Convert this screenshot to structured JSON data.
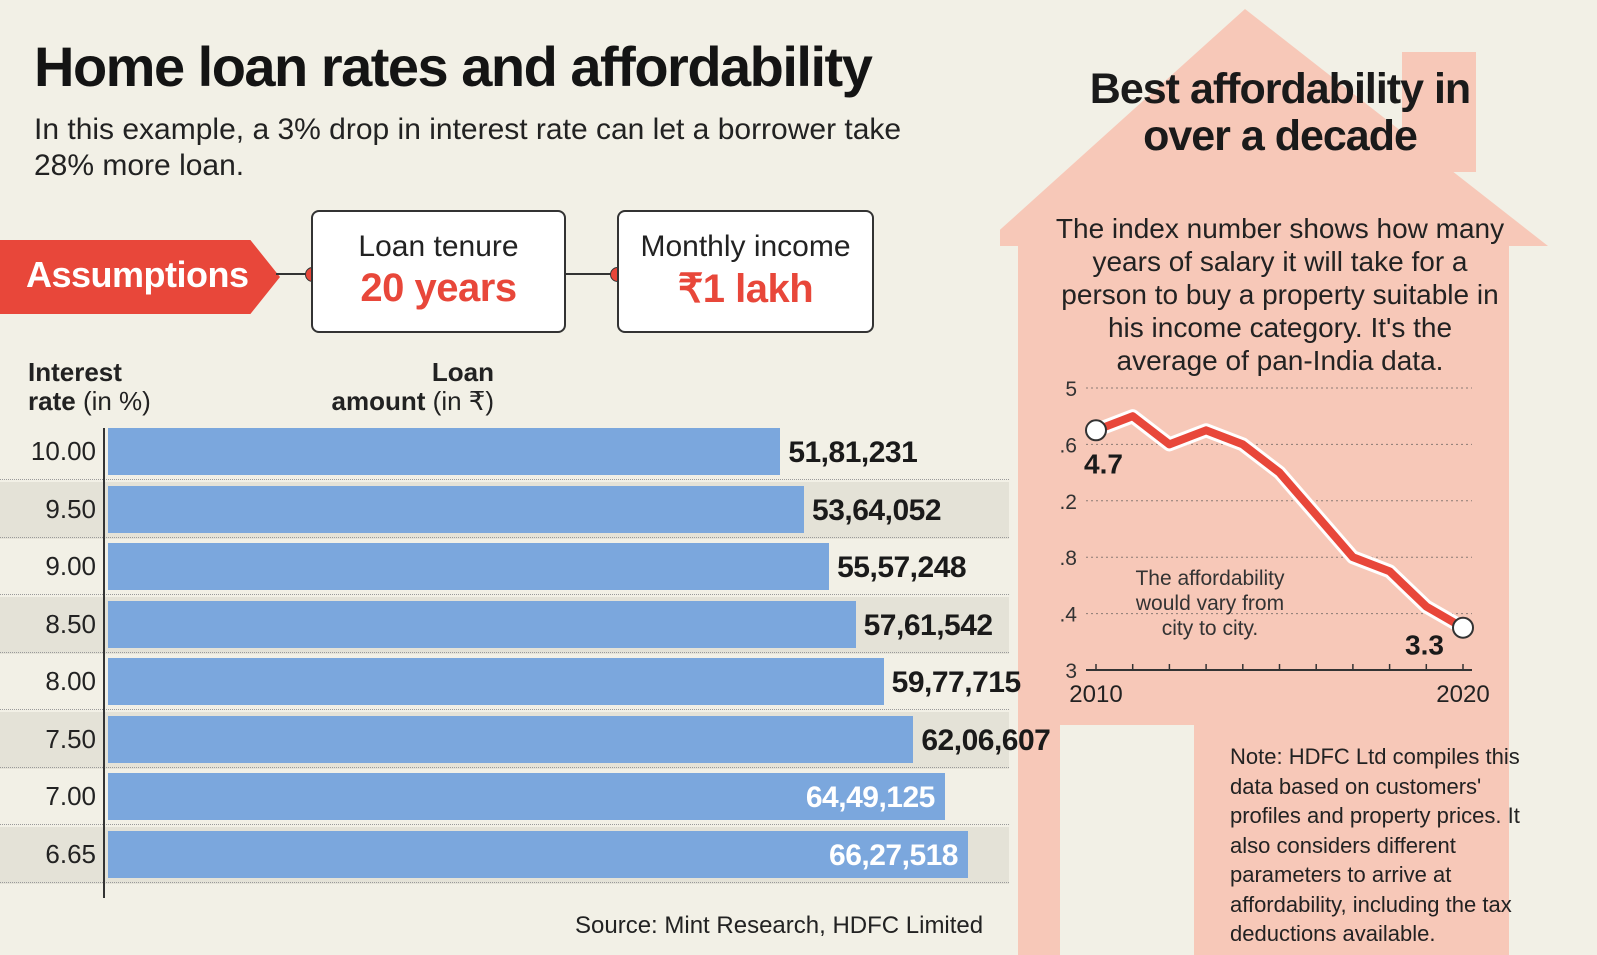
{
  "title": "Home loan rates and affordability",
  "subtitle": "In this example, a 3% drop in interest rate can let a borrower take 28% more loan.",
  "assumptions": {
    "label": "Assumptions",
    "cards": [
      {
        "label": "Loan tenure",
        "value": "20 years"
      },
      {
        "label": "Monthly income",
        "value": "₹1 lakh"
      }
    ]
  },
  "colors": {
    "accent": "#e8473a",
    "bar": "#7ba7dd",
    "panel": "#f7c8b8",
    "background": "#f2f0e6"
  },
  "chart_data": [
    {
      "type": "bar",
      "orientation": "horizontal",
      "header_left_bold": "Interest",
      "header_left_rest_bold": "rate",
      "header_left_unit": "(in %)",
      "header_right_bold": "Loan",
      "header_right_rest_bold": "amount",
      "header_right_unit": "(in ₹)",
      "categories": [
        "10.00",
        "9.50",
        "9.00",
        "8.50",
        "8.00",
        "7.50",
        "7.00",
        "6.65"
      ],
      "values": [
        5181231,
        5364052,
        5557248,
        5761542,
        5977715,
        6206607,
        6449125,
        6627518
      ],
      "labels": [
        "51,81,231",
        "53,64,052",
        "55,57,248",
        "57,61,542",
        "59,77,715",
        "62,06,607",
        "64,49,125",
        "66,27,518"
      ],
      "label_inside_from_index": 6,
      "source": "Source: Mint Research, HDFC Limited"
    },
    {
      "type": "line",
      "title": "Best affordability in over a decade",
      "description": "The index number shows how many years of salary it will take for a person to buy a property suitable in his income category. It's the average of pan-India data.",
      "x": [
        2010,
        2011,
        2012,
        2013,
        2014,
        2015,
        2016,
        2017,
        2018,
        2019,
        2020
      ],
      "values": [
        4.7,
        4.8,
        4.6,
        4.7,
        4.6,
        4.4,
        4.1,
        3.8,
        3.7,
        3.45,
        3.3
      ],
      "ylim": [
        3,
        5
      ],
      "yticks": [
        "5",
        "4.6",
        "4.2",
        "3.8",
        "3.4",
        "3"
      ],
      "xticks": [
        "2010",
        "2020"
      ],
      "start_label": "4.7",
      "end_label": "3.3",
      "annotation": "The affordability would vary from city to city.",
      "note": "Note: HDFC Ltd compiles this data based on customers' profiles and property prices. It also considers different parameters to arrive at affordability, including the tax deductions available."
    }
  ]
}
